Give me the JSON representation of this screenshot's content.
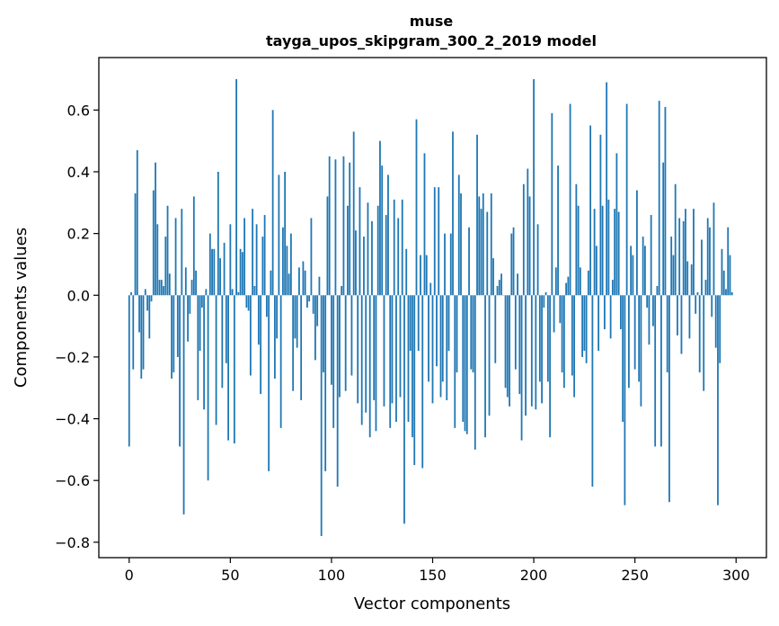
{
  "chart_data": {
    "type": "bar",
    "title": "muse",
    "subtitle": "tayga_upos_skipgram_300_2_2019 model",
    "xlabel": "Vector components",
    "ylabel": "Components values",
    "xlim": [
      -15,
      315
    ],
    "ylim": [
      -0.85,
      0.77
    ],
    "xticks": [
      0,
      50,
      100,
      150,
      200,
      250,
      300
    ],
    "yticks": [
      -0.8,
      -0.6,
      -0.4,
      -0.2,
      0.0,
      0.2,
      0.4,
      0.6
    ],
    "ytick_labels": [
      "−0.8",
      "−0.6",
      "−0.4",
      "−0.2",
      "0.0",
      "0.2",
      "0.4",
      "0.6"
    ],
    "color": "#1f77b4",
    "values": [
      -0.49,
      0.01,
      -0.24,
      0.33,
      0.47,
      -0.12,
      -0.27,
      -0.24,
      0.02,
      -0.05,
      -0.14,
      -0.02,
      0.34,
      0.43,
      0.23,
      0.05,
      0.05,
      0.03,
      0.19,
      0.29,
      0.07,
      -0.27,
      -0.25,
      0.25,
      -0.2,
      -0.49,
      0.28,
      -0.71,
      0.09,
      -0.15,
      -0.06,
      0.05,
      0.32,
      0.08,
      -0.34,
      -0.18,
      -0.04,
      -0.37,
      0.02,
      -0.6,
      0.2,
      0.15,
      0.15,
      -0.42,
      0.4,
      0.12,
      -0.3,
      0.17,
      -0.22,
      -0.47,
      0.23,
      0.02,
      -0.48,
      0.7,
      0.01,
      0.15,
      0.14,
      0.25,
      -0.04,
      -0.05,
      -0.26,
      0.28,
      0.03,
      0.23,
      -0.16,
      -0.32,
      0.19,
      0.26,
      -0.07,
      -0.57,
      0.08,
      0.6,
      -0.27,
      -0.14,
      0.39,
      -0.43,
      0.22,
      0.4,
      0.16,
      0.07,
      0.2,
      -0.31,
      -0.14,
      -0.17,
      0.09,
      -0.34,
      0.11,
      0.08,
      -0.04,
      -0.02,
      0.25,
      -0.06,
      -0.21,
      -0.1,
      0.06,
      -0.78,
      -0.25,
      -0.57,
      0.32,
      0.45,
      -0.29,
      -0.43,
      0.44,
      -0.62,
      -0.33,
      0.03,
      0.45,
      -0.31,
      0.29,
      0.43,
      -0.26,
      0.53,
      0.21,
      -0.35,
      0.35,
      -0.42,
      0.19,
      -0.38,
      0.3,
      -0.46,
      0.24,
      -0.34,
      -0.44,
      0.29,
      0.5,
      0.42,
      -0.36,
      0.26,
      0.39,
      -0.43,
      -0.35,
      0.31,
      -0.41,
      0.25,
      -0.33,
      0.31,
      -0.74,
      0.15,
      -0.41,
      -0.18,
      -0.46,
      -0.55,
      0.57,
      -0.18,
      0.13,
      -0.56,
      0.46,
      0.13,
      -0.28,
      0.04,
      -0.35,
      0.35,
      -0.23,
      0.35,
      -0.33,
      -0.28,
      0.2,
      -0.34,
      -0.18,
      0.2,
      0.53,
      -0.43,
      -0.25,
      0.39,
      0.33,
      -0.41,
      -0.44,
      -0.45,
      0.22,
      -0.24,
      -0.25,
      -0.5,
      0.52,
      0.32,
      0.28,
      0.33,
      -0.46,
      0.27,
      -0.39,
      0.33,
      0.12,
      -0.22,
      0.03,
      0.05,
      0.07,
      0.0,
      -0.3,
      -0.33,
      -0.36,
      0.2,
      0.22,
      -0.24,
      0.07,
      -0.32,
      -0.47,
      0.36,
      -0.39,
      0.41,
      0.32,
      -0.36,
      0.7,
      -0.37,
      0.23,
      -0.28,
      -0.35,
      -0.04,
      0.01,
      -0.28,
      -0.46,
      0.59,
      -0.12,
      0.09,
      0.42,
      -0.09,
      -0.25,
      -0.3,
      0.04,
      0.06,
      0.62,
      -0.26,
      -0.33,
      0.36,
      0.29,
      0.09,
      -0.2,
      -0.18,
      -0.22,
      0.08,
      0.55,
      -0.62,
      0.28,
      0.16,
      -0.18,
      0.52,
      0.29,
      -0.11,
      0.69,
      0.31,
      -0.14,
      0.05,
      0.28,
      0.46,
      0.27,
      -0.11,
      -0.41,
      -0.68,
      0.62,
      -0.3,
      0.16,
      0.13,
      -0.24,
      0.34,
      -0.28,
      -0.36,
      0.19,
      0.16,
      -0.04,
      -0.16,
      0.26,
      -0.1,
      -0.49,
      0.03,
      0.63,
      -0.49,
      0.43,
      0.61,
      -0.25,
      -0.67,
      0.19,
      0.13,
      0.36,
      -0.13,
      0.25,
      -0.19,
      0.24,
      0.28,
      0.11,
      -0.14,
      0.1,
      0.28,
      -0.06,
      0.01,
      -0.25,
      0.18,
      -0.31,
      0.05,
      0.25,
      0.22,
      -0.07,
      0.3,
      -0.17,
      -0.68,
      -0.22,
      0.15,
      0.08,
      0.02,
      0.22,
      0.13,
      0.01
    ]
  }
}
